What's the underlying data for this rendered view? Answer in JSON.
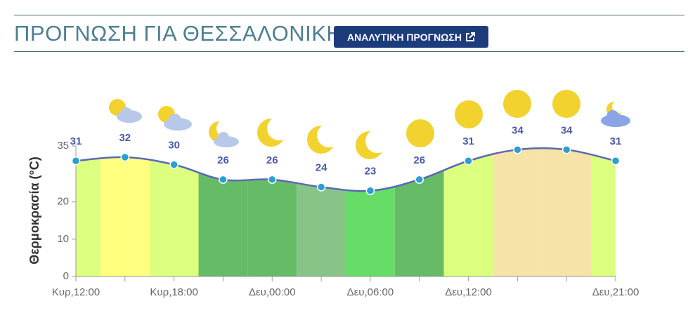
{
  "header": {
    "title": "ΠΡΟΓΝΩΣΗ ΓΙΑ ΘΕΣΣΑΛΟΝΙΚΗ",
    "button": "ΑΝΑΛΥΤΙΚΗ ΠΡΟΓΝΩΣΗ"
  },
  "chart_data": {
    "type": "line",
    "y_label": "Θερμοκρασία (°C)",
    "categories": [
      "Κυρ,12:00",
      null,
      "Κυρ,18:00",
      null,
      "Δευ,00:00",
      null,
      "Δευ,06:00",
      null,
      "Δευ,12:00",
      null,
      null,
      "Δευ,21:00"
    ],
    "values": [
      31,
      32,
      30,
      26,
      26,
      24,
      23,
      26,
      31,
      34,
      34,
      31
    ],
    "color": "#5a68b4",
    "marker_color": "#2b9fd0",
    "band_colors": [
      "#ddff80",
      "#ffff80",
      "#ddff80",
      "#66bb66",
      "#66bb66",
      "#88c488",
      "#66dd66",
      "#66bb66",
      "#ddff80",
      "#f5e3a8",
      "#f5e3a8",
      "#ddff80"
    ],
    "ylim": [
      0,
      35
    ],
    "yticks": [
      0,
      10,
      20,
      35
    ]
  }
}
